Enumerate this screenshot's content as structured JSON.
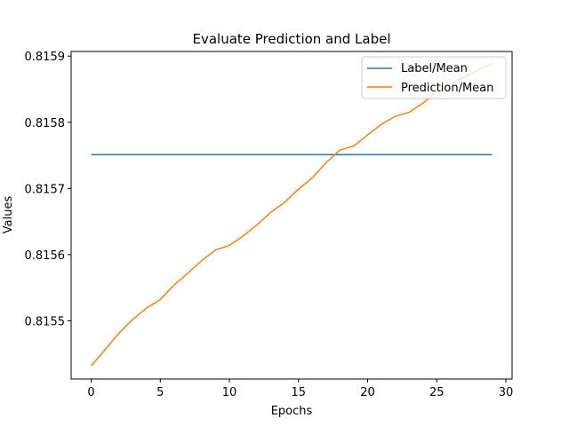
{
  "chart_data": {
    "type": "line",
    "title": "Evaluate Prediction and Label",
    "xlabel": "Epochs",
    "ylabel": "Values",
    "xlim": [
      -1.45,
      30.45
    ],
    "ylim": [
      0.815412,
      0.815907
    ],
    "xticks": [
      0,
      5,
      10,
      15,
      20,
      25,
      30
    ],
    "xtick_labels": [
      "0",
      "5",
      "10",
      "15",
      "20",
      "25",
      "30"
    ],
    "yticks": [
      0.8155,
      0.8156,
      0.8157,
      0.8158,
      0.8159
    ],
    "ytick_labels": [
      "0.8155",
      "0.8156",
      "0.8157",
      "0.8158",
      "0.8159"
    ],
    "grid": false,
    "legend_position": "upper right",
    "x": [
      0,
      1,
      2,
      3,
      4,
      5,
      6,
      7,
      8,
      9,
      10,
      11,
      12,
      13,
      14,
      15,
      16,
      17,
      18,
      19,
      20,
      21,
      22,
      23,
      24,
      25,
      26,
      27,
      28,
      29
    ],
    "series": [
      {
        "name": "Label/Mean",
        "color": "#1f77b4",
        "values": [
          0.815751,
          0.815751,
          0.815751,
          0.815751,
          0.815751,
          0.815751,
          0.815751,
          0.815751,
          0.815751,
          0.815751,
          0.815751,
          0.815751,
          0.815751,
          0.815751,
          0.815751,
          0.815751,
          0.815751,
          0.815751,
          0.815751,
          0.815751,
          0.815751,
          0.815751,
          0.815751,
          0.815751,
          0.815751,
          0.815751,
          0.815751,
          0.815751,
          0.815751,
          0.815751
        ]
      },
      {
        "name": "Prediction/Mean",
        "color": "#ff7f0e",
        "values": [
          0.815432,
          0.815456,
          0.815481,
          0.815502,
          0.815519,
          0.815532,
          0.815554,
          0.815572,
          0.815591,
          0.815607,
          0.815614,
          0.815628,
          0.815645,
          0.815664,
          0.815679,
          0.815699,
          0.815716,
          0.815739,
          0.815758,
          0.815764,
          0.815781,
          0.815797,
          0.815809,
          0.815815,
          0.815829,
          0.815846,
          0.815858,
          0.815868,
          0.815879,
          0.815889
        ]
      }
    ]
  }
}
